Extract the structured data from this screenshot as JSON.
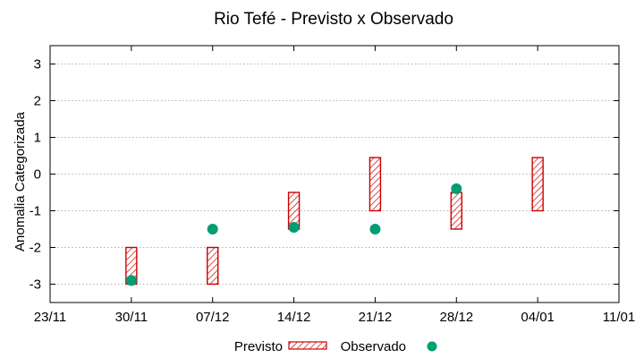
{
  "chart_data": {
    "type": "range-bar",
    "title": "Rio Tefé - Previsto x Observado",
    "ylabel": "Anomalia Categorizada",
    "xlabel": "",
    "x_ticks": [
      "23/11",
      "30/11",
      "07/12",
      "14/12",
      "21/12",
      "28/12",
      "04/01",
      "11/01"
    ],
    "y_ticks": [
      "-3",
      "-2",
      "-1",
      "0",
      "1",
      "2",
      "3"
    ],
    "ylim": [
      -3.5,
      3.5
    ],
    "grid": "horizontal dotted",
    "legend": "bottom",
    "series": [
      {
        "name": "Previsto",
        "kind": "range",
        "color": "#cc0000",
        "pattern": "diagonal hatch",
        "x": [
          "30/11",
          "07/12",
          "14/12",
          "21/12",
          "28/12",
          "04/01"
        ],
        "low": [
          -3.0,
          -3.0,
          -1.5,
          -1.0,
          -1.5,
          -1.0
        ],
        "high": [
          -2.0,
          -2.0,
          -0.5,
          0.45,
          -0.5,
          0.45
        ]
      },
      {
        "name": "Observado",
        "kind": "point",
        "color": "#009e73",
        "x": [
          "30/11",
          "07/12",
          "14/12",
          "21/12",
          "28/12"
        ],
        "values": [
          -2.9,
          -1.5,
          -1.45,
          -1.5,
          -0.4
        ]
      }
    ]
  }
}
